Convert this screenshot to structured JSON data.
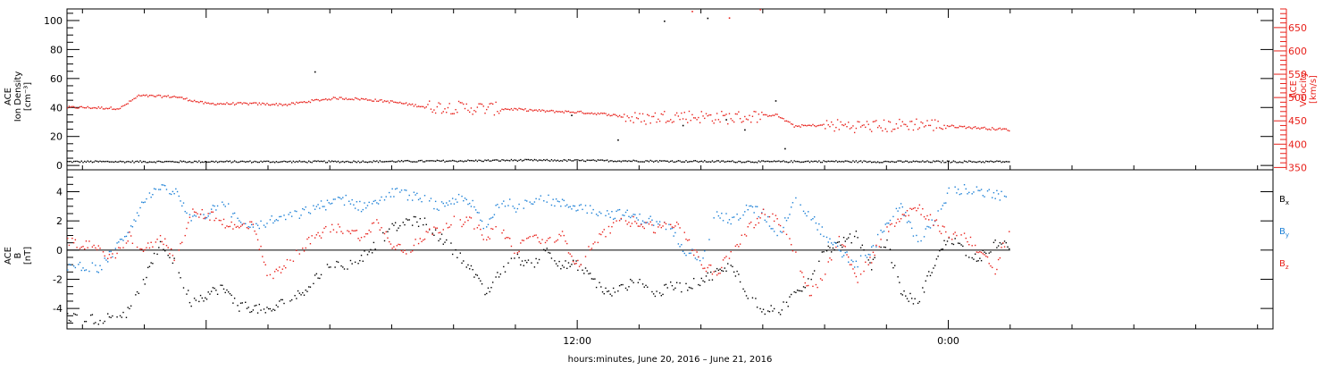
{
  "colors": {
    "density": "#000000",
    "velocity": "#e8201a",
    "bx": "#000000",
    "by": "#1a7fd6",
    "bz": "#e8201a",
    "axis": "#000000"
  },
  "chart_data": [
    {
      "type": "scatter",
      "panel": "top",
      "left_axis_label": [
        "ACE",
        "Ion Density",
        "[cm⁻³]"
      ],
      "right_axis_label": [
        "ACE",
        "Velocity",
        "[km/s]"
      ],
      "yticks_left": [
        "0",
        "20",
        "40",
        "60",
        "80",
        "100"
      ],
      "ylim_left": [
        -3,
        108
      ],
      "yticks_right": [
        "350",
        "400",
        "450",
        "500",
        "550",
        "600",
        "650"
      ],
      "ylim_right": [
        345,
        690
      ],
      "series": [
        {
          "key": "density",
          "axis": "left",
          "x": [
            -4,
            -2,
            0,
            2,
            4,
            6,
            8,
            10,
            12,
            14,
            16,
            18,
            20,
            22,
            24,
            26
          ],
          "y": [
            3,
            3,
            3,
            3,
            3,
            3.2,
            3.5,
            4,
            3.8,
            3.5,
            3.2,
            3,
            3.2,
            3,
            3,
            3
          ]
        },
        {
          "key": "velocity",
          "axis": "right",
          "x": [
            -4,
            -2.8,
            -2.2,
            -1,
            0,
            1.5,
            2.6,
            3.5,
            4.2,
            5,
            6,
            7,
            8,
            9,
            10,
            11,
            12,
            13,
            14,
            15,
            16,
            17,
            18,
            18.4,
            19,
            20,
            21,
            22,
            23,
            24,
            25,
            26
          ],
          "y": [
            480,
            478,
            505,
            503,
            488,
            488,
            486,
            495,
            500,
            498,
            492,
            482,
            480,
            478,
            476,
            472,
            470,
            465,
            455,
            462,
            460,
            458,
            462,
            465,
            440,
            442,
            440,
            440,
            445,
            440,
            436,
            432
          ]
        },
        {
          "key": "density_spikes",
          "axis": "left",
          "x": [
            3.5,
            11.8,
            13.3,
            14.8,
            15.4,
            16.2,
            16.8,
            17.4,
            18.4,
            18.7
          ],
          "y": [
            65,
            35,
            18,
            100,
            28,
            102,
            32,
            25,
            45,
            12
          ]
        }
      ],
      "spikes_right": {
        "x": [
          15.7,
          16.9,
          17.9
        ],
        "y": [
          686,
          672,
          690
        ]
      }
    },
    {
      "type": "scatter",
      "panel": "bottom",
      "left_axis_label": [
        "ACE",
        "B",
        "[nT]"
      ],
      "yticks": [
        "-4",
        "-2",
        "0",
        "2",
        "4"
      ],
      "ylim": [
        -5.4,
        5.5
      ],
      "legend": [
        "Bx",
        "By",
        "Bz"
      ],
      "legend_placement": "right",
      "series": [
        {
          "key": "bx",
          "x": [
            -4,
            -3.5,
            -3,
            -2.5,
            -2,
            -1.5,
            -1,
            -0.5,
            0,
            0.5,
            1,
            1.5,
            2,
            2.5,
            3,
            3.5,
            4,
            4.5,
            5,
            5.5,
            6,
            6.5,
            7,
            7.5,
            8,
            8.5,
            9,
            9.5,
            10,
            10.5,
            11,
            11.5,
            12,
            12.5,
            13,
            13.5,
            14,
            14.5,
            15,
            15.5,
            16,
            16.5,
            17,
            17.5,
            18,
            18.5,
            19,
            19.5,
            20,
            20.5,
            21,
            21.5,
            22,
            22.5,
            23,
            23.5,
            24,
            24.5,
            25,
            25.5,
            26
          ],
          "y": [
            -4.6,
            -4.7,
            -4.5,
            -4.2,
            -2,
            0.5,
            -1,
            -3.5,
            -3,
            -2.5,
            -3.8,
            -3.9,
            -4.2,
            -3.5,
            -3,
            -2,
            -1,
            -1,
            -0.5,
            0.5,
            1.5,
            2,
            2,
            1,
            0,
            -1,
            -3,
            -1.5,
            -0.5,
            -1,
            0,
            -1,
            -1,
            -2,
            -3,
            -2.5,
            -2,
            -3,
            -2.5,
            -2.5,
            -2,
            -1.5,
            -1,
            -3,
            -4,
            -4.2,
            -3,
            -2,
            0,
            0.5,
            1,
            -1,
            0.5,
            -3,
            -3.5,
            -1,
            1,
            0,
            -0.5,
            0.5,
            0.2
          ]
        },
        {
          "key": "by",
          "x": [
            -4,
            -3.5,
            -3,
            -2.5,
            -2,
            -1.5,
            -1,
            -0.5,
            0,
            0.5,
            1,
            1.5,
            2,
            2.5,
            3,
            3.5,
            4,
            4.5,
            5,
            5.5,
            6,
            6.5,
            7,
            7.5,
            8,
            8.5,
            9,
            9.5,
            10,
            10.5,
            11,
            11.5,
            12,
            12.5,
            13,
            13.5,
            14,
            14.5,
            15,
            15.5,
            16,
            16.5,
            17,
            17.5,
            18,
            18.5,
            19,
            19.5,
            20,
            20.5,
            21,
            21.5,
            22,
            22.5,
            23,
            23.5,
            24,
            24.5,
            25,
            25.5,
            26
          ],
          "y": [
            -1,
            -1.3,
            0,
            1.5,
            3.5,
            4.2,
            4,
            2,
            2.5,
            3.5,
            2,
            1.5,
            2,
            2.2,
            2.5,
            3,
            3.2,
            3.5,
            3,
            3.5,
            4,
            3.8,
            3.5,
            3,
            3.5,
            3.5,
            1.5,
            3.5,
            3,
            3.5,
            3.5,
            3.2,
            3,
            2.8,
            2.5,
            2.5,
            2.2,
            2,
            1.5,
            0,
            -0.5,
            2.5,
            2,
            3,
            2.5,
            1,
            3.5,
            2.5,
            1,
            0,
            -1,
            0,
            2,
            3,
            0.5,
            2,
            4,
            4.2,
            4,
            3.8,
            3.6
          ]
        },
        {
          "key": "bz",
          "x": [
            -4,
            -3.5,
            -3,
            -2.5,
            -2,
            -1.5,
            -1,
            -0.5,
            0,
            0.5,
            1,
            1.5,
            2,
            2.5,
            3,
            3.5,
            4,
            4.5,
            5,
            5.5,
            6,
            6.5,
            7,
            7.5,
            8,
            8.5,
            9,
            9.5,
            10,
            10.5,
            11,
            11.5,
            12,
            12.5,
            13,
            13.5,
            14,
            14.5,
            15,
            15.5,
            16,
            16.5,
            17,
            17.5,
            18,
            18.5,
            19,
            19.5,
            20,
            20.5,
            21,
            21.5,
            22,
            22.5,
            23,
            23.5,
            24,
            24.5,
            25,
            25.5,
            26
          ],
          "y": [
            0.5,
            0,
            -0.5,
            1,
            0,
            1,
            -0.5,
            2.5,
            2.5,
            2,
            1.5,
            2,
            -2,
            -1,
            0,
            1,
            1.5,
            1.5,
            1,
            2,
            0.5,
            0,
            1,
            1.5,
            2,
            2,
            1,
            1.5,
            0,
            1,
            0.5,
            1,
            -1,
            0.5,
            1.5,
            2,
            2,
            1.5,
            2,
            1,
            -1,
            -1.5,
            0,
            1.5,
            2.5,
            2,
            0,
            -3,
            -1.5,
            1,
            -2,
            -0.5,
            1.5,
            2.5,
            3,
            2,
            1,
            1,
            0,
            -1.5,
            2
          ]
        }
      ]
    }
  ],
  "x_axis": {
    "label": "hours:minutes, June 20, 2016 – June 21, 2016",
    "tick_labels": [
      {
        "text": "12:00",
        "hour": 12
      },
      {
        "text": "0:00",
        "hour": 24
      }
    ],
    "xlim": [
      -4.5,
      34.5
    ],
    "data_end_hour": 26
  }
}
